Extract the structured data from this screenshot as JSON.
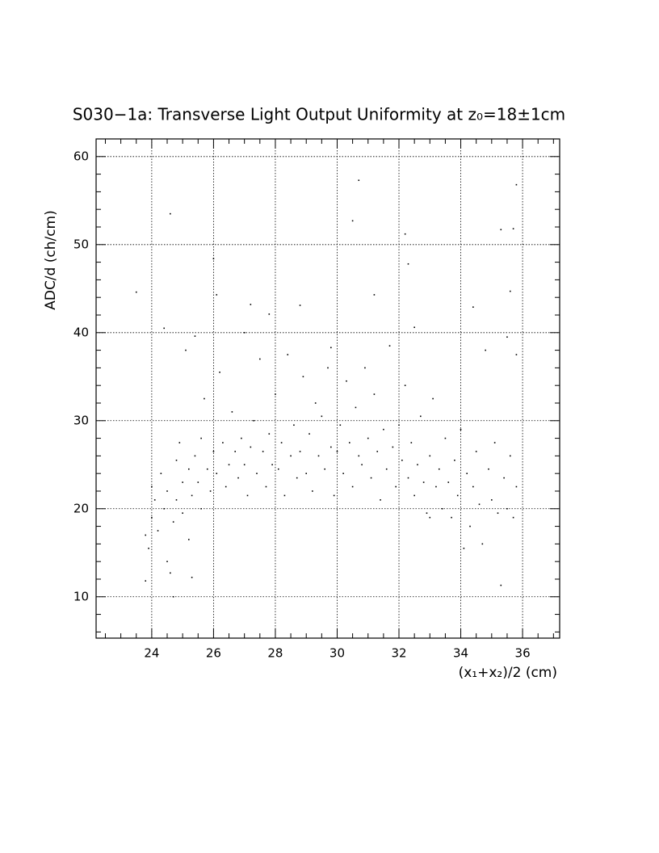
{
  "chart_data": {
    "type": "scatter",
    "title": "S030−1a: Transverse Light Output Uniformity at z₀=18±1cm",
    "x_label": "(x₁+x₂)/2 (cm)",
    "y_label": "ADC/d (ch/cm)",
    "color": "#000000",
    "grid": true,
    "xlim": [
      22.2,
      37.2
    ],
    "ylim": [
      5.3,
      62
    ],
    "xticks": [
      24,
      26,
      28,
      30,
      32,
      34,
      36
    ],
    "yticks": [
      10,
      20,
      30,
      40,
      50,
      60
    ],
    "xminorticks": [
      22.5,
      23,
      23.5,
      24.5,
      25,
      25.5,
      26.5,
      27,
      27.5,
      28.5,
      29,
      29.5,
      30.5,
      31,
      31.5,
      32.5,
      33,
      33.5,
      34.5,
      35,
      35.5,
      36.5,
      37
    ],
    "yminorticks": [
      6,
      8,
      12,
      14,
      16,
      18,
      22,
      24,
      26,
      28,
      32,
      34,
      36,
      38,
      42,
      44,
      46,
      48,
      52,
      54,
      56,
      58,
      62
    ],
    "x": [
      23.5,
      23.8,
      23.8,
      23.9,
      24.0,
      24.0,
      24.1,
      24.2,
      24.3,
      24.4,
      24.4,
      24.5,
      24.5,
      24.6,
      24.6,
      24.7,
      24.8,
      24.8,
      24.9,
      25.0,
      25.0,
      25.1,
      25.2,
      25.2,
      25.3,
      25.3,
      25.4,
      25.4,
      25.5,
      25.6,
      25.6,
      25.7,
      25.8,
      25.9,
      26.0,
      26.0,
      26.1,
      26.1,
      26.2,
      26.3,
      26.4,
      26.5,
      26.6,
      26.7,
      26.8,
      26.9,
      27.0,
      27.1,
      27.2,
      27.2,
      27.3,
      27.4,
      27.5,
      27.6,
      27.7,
      27.8,
      27.8,
      27.9,
      28.0,
      28.1,
      28.2,
      28.3,
      28.4,
      28.5,
      28.6,
      28.7,
      28.8,
      28.8,
      28.9,
      29.0,
      29.1,
      29.2,
      29.3,
      29.4,
      29.5,
      29.6,
      29.7,
      29.8,
      29.8,
      29.9,
      30.0,
      30.1,
      30.2,
      30.3,
      30.4,
      30.5,
      30.5,
      30.6,
      30.7,
      30.7,
      30.8,
      30.9,
      31.0,
      31.1,
      31.2,
      31.2,
      31.3,
      31.4,
      31.5,
      31.6,
      31.7,
      31.8,
      31.9,
      32.0,
      32.1,
      32.2,
      32.2,
      32.3,
      32.3,
      32.4,
      32.5,
      32.5,
      32.6,
      32.7,
      32.8,
      32.9,
      33.0,
      33.1,
      33.2,
      33.3,
      33.4,
      33.5,
      33.6,
      33.7,
      33.8,
      33.9,
      34.0,
      34.1,
      34.2,
      34.3,
      34.4,
      34.4,
      34.5,
      34.6,
      34.7,
      34.8,
      34.9,
      35.0,
      35.1,
      35.2,
      35.3,
      35.3,
      35.4,
      35.5,
      35.5,
      35.6,
      35.6,
      35.7,
      35.7,
      35.8,
      35.8,
      35.8,
      24.7,
      33.0,
      27.0
    ],
    "y": [
      44.6,
      11.8,
      17.0,
      15.5,
      22.5,
      19.0,
      21.0,
      17.5,
      24.0,
      20.0,
      40.5,
      22.0,
      14.0,
      12.7,
      53.5,
      18.5,
      25.5,
      21.0,
      27.5,
      23.0,
      19.5,
      38.0,
      24.5,
      16.5,
      12.2,
      21.5,
      26.0,
      39.6,
      23.0,
      28.0,
      20.0,
      32.5,
      24.5,
      22.0,
      48.4,
      26.5,
      44.3,
      24.0,
      35.5,
      27.5,
      22.5,
      25.0,
      31.0,
      26.5,
      23.5,
      28.0,
      25.0,
      21.5,
      43.2,
      27.0,
      30.0,
      24.0,
      37.0,
      26.5,
      22.5,
      42.1,
      28.5,
      25.0,
      33.0,
      24.5,
      27.5,
      21.5,
      37.5,
      26.0,
      29.5,
      23.5,
      43.1,
      26.5,
      35.0,
      24.0,
      28.5,
      22.0,
      32.0,
      26.0,
      30.5,
      24.5,
      36.0,
      38.3,
      27.0,
      21.5,
      26.5,
      29.5,
      24.0,
      34.5,
      27.5,
      52.7,
      22.5,
      31.5,
      57.3,
      26.0,
      25.0,
      36.0,
      28.0,
      23.5,
      44.3,
      33.0,
      26.5,
      21.0,
      29.0,
      24.5,
      38.5,
      27.0,
      22.5,
      29.5,
      25.5,
      51.2,
      34.0,
      47.8,
      23.5,
      27.5,
      40.6,
      21.5,
      25.0,
      30.5,
      23.0,
      19.5,
      26.0,
      32.5,
      22.5,
      24.5,
      20.0,
      28.0,
      23.0,
      19.0,
      25.5,
      21.5,
      29.0,
      15.5,
      24.0,
      18.0,
      42.9,
      22.5,
      26.5,
      20.5,
      16.0,
      38.0,
      24.5,
      21.0,
      27.5,
      19.5,
      51.7,
      11.3,
      23.5,
      39.5,
      20.0,
      44.7,
      26.0,
      51.8,
      19.0,
      56.8,
      37.5,
      22.5,
      10.0,
      19.0,
      40.0
    ]
  }
}
